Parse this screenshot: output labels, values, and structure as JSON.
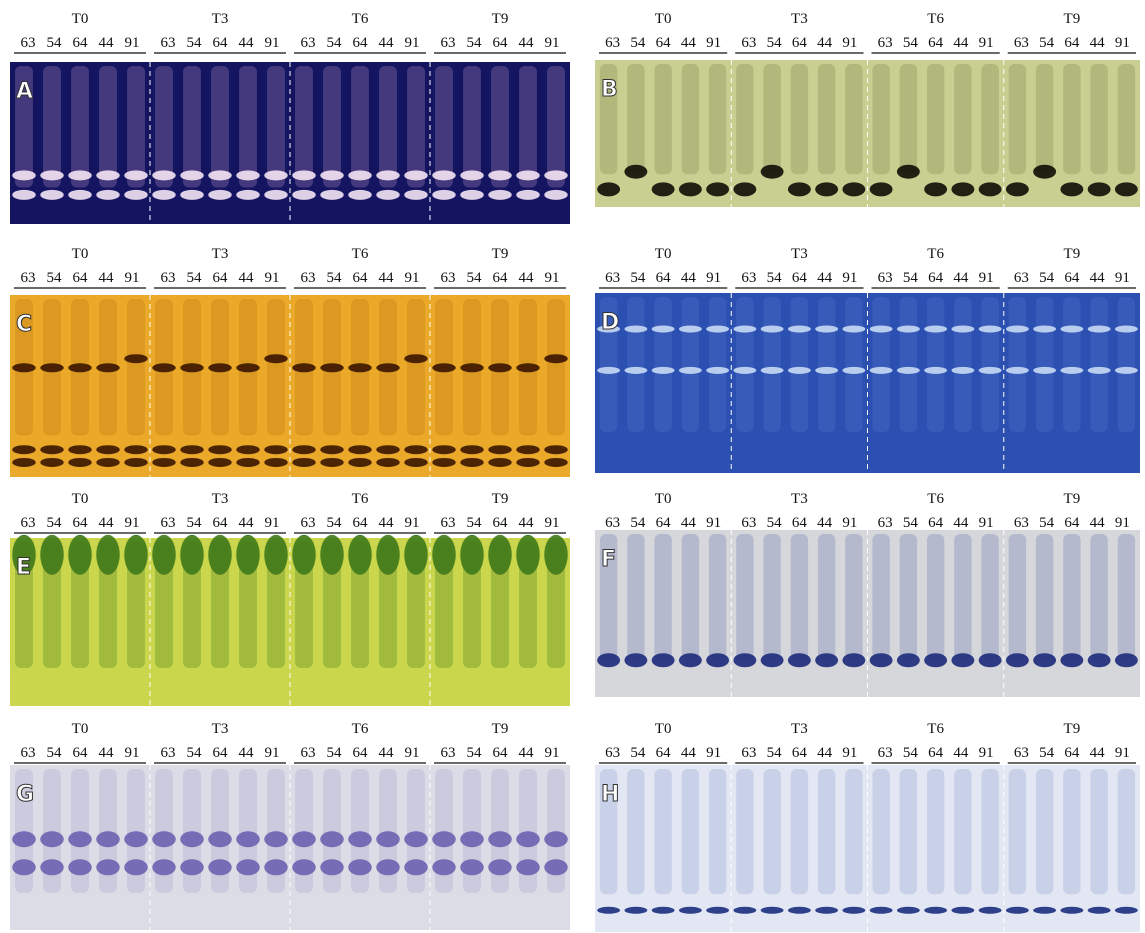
{
  "panels": [
    {
      "label": "A",
      "groups": [
        {
          "title": "T0",
          "lanes": [
            "63",
            "54",
            "64",
            "44",
            "91"
          ]
        },
        {
          "title": "T3",
          "lanes": [
            "63",
            "54",
            "64",
            "44",
            "91"
          ]
        },
        {
          "title": "T6",
          "lanes": [
            "63",
            "54",
            "64",
            "44",
            "91"
          ]
        },
        {
          "title": "T9",
          "lanes": [
            "63",
            "54",
            "64",
            "44",
            "91"
          ]
        }
      ]
    },
    {
      "label": "B",
      "groups": [
        {
          "title": "T0",
          "lanes": [
            "63",
            "54",
            "64",
            "44",
            "91"
          ]
        },
        {
          "title": "T3",
          "lanes": [
            "63",
            "54",
            "64",
            "44",
            "91"
          ]
        },
        {
          "title": "T6",
          "lanes": [
            "63",
            "54",
            "64",
            "44",
            "91"
          ]
        },
        {
          "title": "T9",
          "lanes": [
            "63",
            "54",
            "64",
            "44",
            "91"
          ]
        }
      ]
    },
    {
      "label": "C",
      "groups": [
        {
          "title": "T0",
          "lanes": [
            "63",
            "54",
            "64",
            "44",
            "91"
          ]
        },
        {
          "title": "T3",
          "lanes": [
            "63",
            "54",
            "64",
            "44",
            "91"
          ]
        },
        {
          "title": "T6",
          "lanes": [
            "63",
            "54",
            "64",
            "44",
            "91"
          ]
        },
        {
          "title": "T9",
          "lanes": [
            "63",
            "54",
            "64",
            "44",
            "91"
          ]
        }
      ]
    },
    {
      "label": "D",
      "groups": [
        {
          "title": "T0",
          "lanes": [
            "63",
            "54",
            "64",
            "44",
            "91"
          ]
        },
        {
          "title": "T3",
          "lanes": [
            "63",
            "54",
            "64",
            "44",
            "91"
          ]
        },
        {
          "title": "T6",
          "lanes": [
            "63",
            "54",
            "64",
            "44",
            "91"
          ]
        },
        {
          "title": "T9",
          "lanes": [
            "63",
            "54",
            "64",
            "44",
            "91"
          ]
        }
      ]
    },
    {
      "label": "E",
      "groups": [
        {
          "title": "T0",
          "lanes": [
            "63",
            "54",
            "64",
            "44",
            "91"
          ]
        },
        {
          "title": "T3",
          "lanes": [
            "63",
            "54",
            "64",
            "44",
            "91"
          ]
        },
        {
          "title": "T6",
          "lanes": [
            "63",
            "54",
            "64",
            "44",
            "91"
          ]
        },
        {
          "title": "T9",
          "lanes": [
            "63",
            "54",
            "64",
            "44",
            "91"
          ]
        }
      ]
    },
    {
      "label": "F",
      "groups": [
        {
          "title": "T0",
          "lanes": [
            "63",
            "54",
            "64",
            "44",
            "91"
          ]
        },
        {
          "title": "T3",
          "lanes": [
            "63",
            "54",
            "64",
            "44",
            "91"
          ]
        },
        {
          "title": "T6",
          "lanes": [
            "63",
            "54",
            "64",
            "44",
            "91"
          ]
        },
        {
          "title": "T9",
          "lanes": [
            "63",
            "54",
            "64",
            "44",
            "91"
          ]
        }
      ]
    },
    {
      "label": "G",
      "groups": [
        {
          "title": "T0",
          "lanes": [
            "63",
            "54",
            "64",
            "44",
            "91"
          ]
        },
        {
          "title": "T3",
          "lanes": [
            "63",
            "54",
            "64",
            "44",
            "91"
          ]
        },
        {
          "title": "T6",
          "lanes": [
            "63",
            "54",
            "64",
            "44",
            "91"
          ]
        },
        {
          "title": "T9",
          "lanes": [
            "63",
            "54",
            "64",
            "44",
            "91"
          ]
        }
      ]
    },
    {
      "label": "H",
      "groups": [
        {
          "title": "T0",
          "lanes": [
            "63",
            "54",
            "64",
            "44",
            "91"
          ]
        },
        {
          "title": "T3",
          "lanes": [
            "63",
            "54",
            "64",
            "44",
            "91"
          ]
        },
        {
          "title": "T6",
          "lanes": [
            "63",
            "54",
            "64",
            "44",
            "91"
          ]
        },
        {
          "title": "T9",
          "lanes": [
            "63",
            "54",
            "64",
            "44",
            "91"
          ]
        }
      ]
    }
  ]
}
